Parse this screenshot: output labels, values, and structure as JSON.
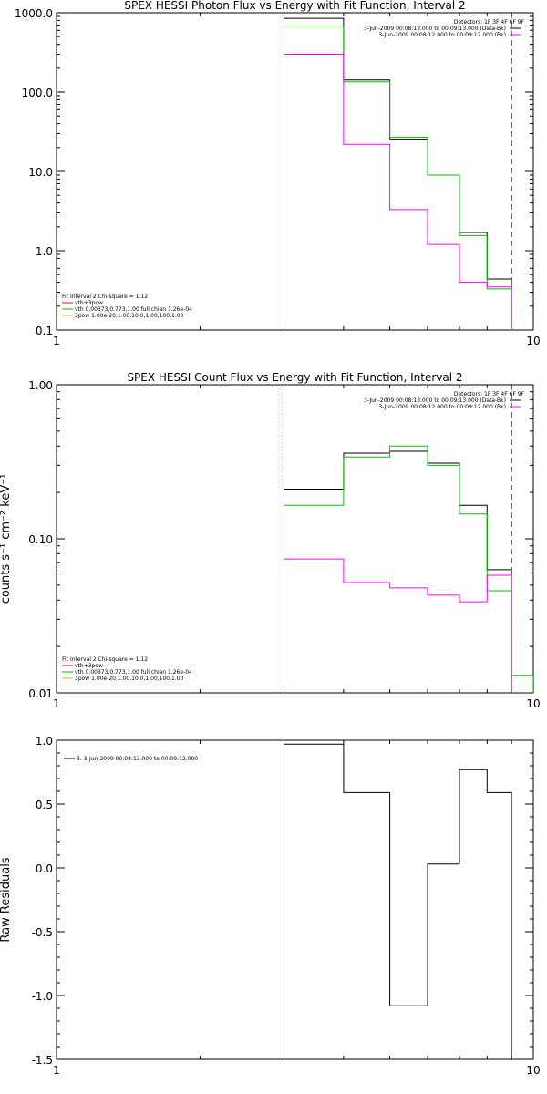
{
  "chart_data": [
    {
      "type": "line",
      "title": "SPEX HESSI Photon Flux vs Energy with Fit Function, Interval 2",
      "xscale": "log",
      "yscale": "log",
      "xlim": [
        1,
        10
      ],
      "ylim": [
        0.1,
        1000
      ],
      "xticks": [
        1,
        10
      ],
      "xtick_labels": [
        "1",
        "10"
      ],
      "yticks": [
        0.1,
        1,
        10,
        100,
        1000
      ],
      "ytick_labels": [
        "0.1",
        "1.0",
        "10.0",
        "100.0",
        "1000.0"
      ],
      "ylabel": "",
      "xlabel": "",
      "vlines": [
        {
          "x": 3.0,
          "style": "dotted",
          "color": "#000000"
        },
        {
          "x": 9.0,
          "style": "dashed",
          "color": "#000000"
        }
      ],
      "legend_top_right": [
        {
          "text": "Detectors: 1F 3F 4F 6F 9F",
          "color": ""
        },
        {
          "text": "3-Jun-2009 00:08:13.000 to 00:09:13.000 (Data-Bk)",
          "color": "#000000"
        },
        {
          "text": "3-Jun-2009 00:08:12.000 to 00:09:12.000 (Bk)",
          "color": "#ff00ff"
        }
      ],
      "legend_bottom_left": [
        {
          "text": "Fit Interval 2   Chi-square = 1.12",
          "color": ""
        },
        {
          "text": "vth+3pow",
          "color": "#ff0000"
        },
        {
          "text": "vth 0.00373,0.773,1.00   full chian 1.26e-04",
          "color": "#00c000"
        },
        {
          "text": "3pow 1.00e-20,1.00,10.0,1.00,100,1.00",
          "color": "#e0b000"
        }
      ],
      "edges": [
        3,
        4,
        5,
        6,
        7,
        8,
        9
      ],
      "series": [
        {
          "name": "Data-Bk",
          "color": "#000000",
          "values": [
            850,
            142,
            25,
            9,
            1.7,
            0.44
          ]
        },
        {
          "name": "",
          "color": "#00c000",
          "values": [
            680,
            135,
            27,
            9,
            1.55,
            0.33
          ]
        },
        {
          "name": "Bk",
          "color": "#ff00ff",
          "values": [
            300,
            22,
            3.3,
            1.2,
            0.4,
            0.35
          ]
        }
      ]
    },
    {
      "type": "line",
      "title": "SPEX HESSI Count Flux vs Energy with Fit Function, Interval 2",
      "xscale": "log",
      "yscale": "log",
      "xlim": [
        1,
        10
      ],
      "ylim": [
        0.01,
        1
      ],
      "xticks": [
        1,
        10
      ],
      "xtick_labels": [
        "1",
        "10"
      ],
      "yticks": [
        0.01,
        0.1,
        1
      ],
      "ytick_labels": [
        "0.01",
        "0.10",
        "1.00"
      ],
      "ylabel": "counts s⁻¹ cm⁻² keV⁻¹",
      "xlabel": "",
      "vlines": [
        {
          "x": 3.0,
          "style": "dotted",
          "color": "#000000"
        },
        {
          "x": 9.0,
          "style": "dashed",
          "color": "#000000"
        }
      ],
      "legend_top_right": [
        {
          "text": "Detectors: 1F 3F 4F 6F 9F",
          "color": ""
        },
        {
          "text": "3-Jun-2009 00:08:13.000 to 00:09:13.000 (Data-Bk)",
          "color": "#000000"
        },
        {
          "text": "3-Jun-2009 00:08:12.000 to 00:09:12.000 (Bk)",
          "color": "#ff00ff"
        }
      ],
      "legend_bottom_left": [
        {
          "text": "Fit Interval 2   Chi-square = 1.12",
          "color": ""
        },
        {
          "text": "vth+3pow",
          "color": "#ff0000"
        },
        {
          "text": "vth 0.00373,0.773,1.00   full chian 1.26e-04",
          "color": "#00c000"
        },
        {
          "text": "3pow 1.00e-20,1.00,10.0,1.00,100,1.00",
          "color": "#e0b000"
        }
      ],
      "edges": [
        3,
        4,
        5,
        6,
        7,
        8,
        9,
        10
      ],
      "series": [
        {
          "name": "Data-Bk",
          "color": "#000000",
          "values": [
            0.21,
            0.36,
            0.37,
            0.31,
            0.165,
            0.063,
            null
          ]
        },
        {
          "name": "",
          "color": "#00c000",
          "values": [
            0.165,
            0.34,
            0.4,
            0.3,
            0.145,
            0.046,
            0.013
          ]
        },
        {
          "name": "Bk",
          "color": "#ff00ff",
          "values": [
            0.074,
            0.052,
            0.048,
            0.043,
            0.039,
            0.058,
            null
          ]
        }
      ]
    },
    {
      "type": "line",
      "title": "",
      "xscale": "log",
      "yscale": "linear",
      "xlim": [
        1,
        10
      ],
      "ylim": [
        -1.5,
        1.0
      ],
      "xticks": [
        1,
        10
      ],
      "xtick_labels": [
        "1",
        "10"
      ],
      "yticks": [
        -1.5,
        -1.0,
        -0.5,
        0.0,
        0.5,
        1.0
      ],
      "ytick_labels": [
        "-1.5",
        "-1.0",
        "-0.5",
        "0.0",
        "0.5",
        "1.0"
      ],
      "ylabel": "Raw Residuals",
      "xlabel": "",
      "vlines": [],
      "legend_top_left": [
        {
          "text": "3.  3-Jun-2009 00:08:13.000 to 00:09:12.000",
          "color": "#000000"
        }
      ],
      "edges": [
        3,
        4,
        5,
        6,
        7,
        8,
        9
      ],
      "series": [
        {
          "name": "3.  3-Jun-2009 00:08:13.000 to 00:09:12.000",
          "color": "#000000",
          "values": [
            0.97,
            0.59,
            -1.08,
            0.03,
            0.77,
            0.59
          ]
        }
      ]
    }
  ]
}
